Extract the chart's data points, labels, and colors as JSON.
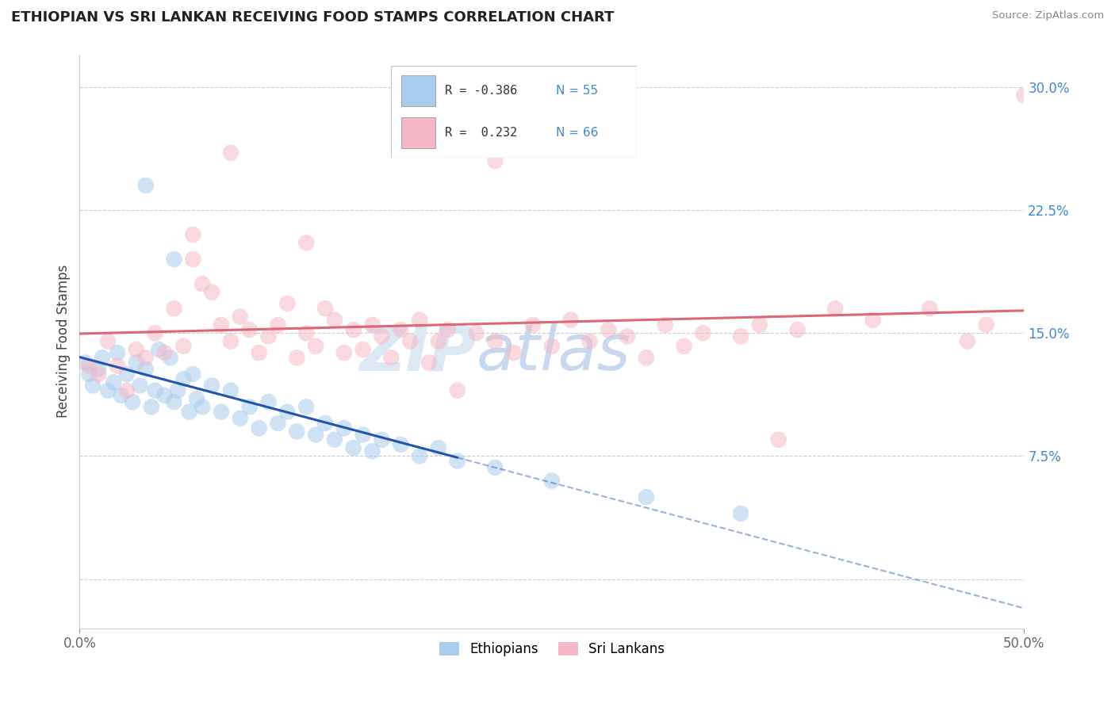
{
  "title": "ETHIOPIAN VS SRI LANKAN RECEIVING FOOD STAMPS CORRELATION CHART",
  "source": "Source: ZipAtlas.com",
  "ylabel": "Receiving Food Stamps",
  "xlim": [
    0.0,
    50.0
  ],
  "ylim": [
    -3.0,
    32.0
  ],
  "yticks": [
    0.0,
    7.5,
    15.0,
    22.5,
    30.0
  ],
  "ytick_labels": [
    "",
    "7.5%",
    "15.0%",
    "22.5%",
    "30.0%"
  ],
  "xtick_labels": [
    "0.0%",
    "50.0%"
  ],
  "color_ethiopian": "#aaccee",
  "color_srilanka": "#f5b8c8",
  "color_ethiopian_line": "#2255aa",
  "color_srilanka_line": "#dd6677",
  "watermark_zip": "ZIP",
  "watermark_atlas": "atlas",
  "ethiopian_points": [
    [
      0.3,
      13.2
    ],
    [
      0.5,
      12.5
    ],
    [
      0.7,
      11.8
    ],
    [
      1.0,
      12.8
    ],
    [
      1.2,
      13.5
    ],
    [
      1.5,
      11.5
    ],
    [
      1.8,
      12.0
    ],
    [
      2.0,
      13.8
    ],
    [
      2.2,
      11.2
    ],
    [
      2.5,
      12.5
    ],
    [
      2.8,
      10.8
    ],
    [
      3.0,
      13.2
    ],
    [
      3.2,
      11.8
    ],
    [
      3.5,
      12.8
    ],
    [
      3.8,
      10.5
    ],
    [
      4.0,
      11.5
    ],
    [
      4.2,
      14.0
    ],
    [
      4.5,
      11.2
    ],
    [
      4.8,
      13.5
    ],
    [
      5.0,
      10.8
    ],
    [
      5.2,
      11.5
    ],
    [
      5.5,
      12.2
    ],
    [
      5.8,
      10.2
    ],
    [
      6.0,
      12.5
    ],
    [
      6.2,
      11.0
    ],
    [
      6.5,
      10.5
    ],
    [
      7.0,
      11.8
    ],
    [
      7.5,
      10.2
    ],
    [
      8.0,
      11.5
    ],
    [
      8.5,
      9.8
    ],
    [
      9.0,
      10.5
    ],
    [
      9.5,
      9.2
    ],
    [
      10.0,
      10.8
    ],
    [
      10.5,
      9.5
    ],
    [
      11.0,
      10.2
    ],
    [
      11.5,
      9.0
    ],
    [
      12.0,
      10.5
    ],
    [
      12.5,
      8.8
    ],
    [
      13.0,
      9.5
    ],
    [
      13.5,
      8.5
    ],
    [
      14.0,
      9.2
    ],
    [
      14.5,
      8.0
    ],
    [
      15.0,
      8.8
    ],
    [
      15.5,
      7.8
    ],
    [
      16.0,
      8.5
    ],
    [
      3.5,
      24.0
    ],
    [
      5.0,
      19.5
    ],
    [
      17.0,
      8.2
    ],
    [
      18.0,
      7.5
    ],
    [
      19.0,
      8.0
    ],
    [
      20.0,
      7.2
    ],
    [
      22.0,
      6.8
    ],
    [
      25.0,
      6.0
    ],
    [
      30.0,
      5.0
    ],
    [
      35.0,
      4.0
    ]
  ],
  "srilanka_points": [
    [
      0.5,
      13.0
    ],
    [
      1.0,
      12.5
    ],
    [
      1.5,
      14.5
    ],
    [
      2.0,
      13.0
    ],
    [
      2.5,
      11.5
    ],
    [
      3.0,
      14.0
    ],
    [
      3.5,
      13.5
    ],
    [
      4.0,
      15.0
    ],
    [
      4.5,
      13.8
    ],
    [
      5.0,
      16.5
    ],
    [
      5.5,
      14.2
    ],
    [
      6.0,
      19.5
    ],
    [
      6.5,
      18.0
    ],
    [
      7.0,
      17.5
    ],
    [
      7.5,
      15.5
    ],
    [
      8.0,
      14.5
    ],
    [
      8.5,
      16.0
    ],
    [
      9.0,
      15.2
    ],
    [
      9.5,
      13.8
    ],
    [
      10.0,
      14.8
    ],
    [
      10.5,
      15.5
    ],
    [
      11.0,
      16.8
    ],
    [
      11.5,
      13.5
    ],
    [
      12.0,
      15.0
    ],
    [
      12.5,
      14.2
    ],
    [
      13.0,
      16.5
    ],
    [
      13.5,
      15.8
    ],
    [
      14.0,
      13.8
    ],
    [
      14.5,
      15.2
    ],
    [
      15.0,
      14.0
    ],
    [
      15.5,
      15.5
    ],
    [
      16.0,
      14.8
    ],
    [
      16.5,
      13.5
    ],
    [
      17.0,
      15.2
    ],
    [
      17.5,
      14.5
    ],
    [
      18.0,
      15.8
    ],
    [
      18.5,
      13.2
    ],
    [
      19.0,
      14.5
    ],
    [
      19.5,
      15.2
    ],
    [
      20.0,
      11.5
    ],
    [
      21.0,
      15.0
    ],
    [
      22.0,
      14.5
    ],
    [
      23.0,
      13.8
    ],
    [
      24.0,
      15.5
    ],
    [
      25.0,
      14.2
    ],
    [
      26.0,
      15.8
    ],
    [
      27.0,
      14.5
    ],
    [
      28.0,
      15.2
    ],
    [
      29.0,
      14.8
    ],
    [
      30.0,
      13.5
    ],
    [
      31.0,
      15.5
    ],
    [
      32.0,
      14.2
    ],
    [
      33.0,
      15.0
    ],
    [
      35.0,
      14.8
    ],
    [
      36.0,
      15.5
    ],
    [
      37.0,
      8.5
    ],
    [
      38.0,
      15.2
    ],
    [
      40.0,
      16.5
    ],
    [
      42.0,
      15.8
    ],
    [
      45.0,
      16.5
    ],
    [
      47.0,
      14.5
    ],
    [
      48.0,
      15.5
    ],
    [
      50.0,
      29.5
    ],
    [
      8.0,
      26.0
    ],
    [
      22.0,
      25.5
    ],
    [
      12.0,
      20.5
    ],
    [
      6.0,
      21.0
    ]
  ]
}
